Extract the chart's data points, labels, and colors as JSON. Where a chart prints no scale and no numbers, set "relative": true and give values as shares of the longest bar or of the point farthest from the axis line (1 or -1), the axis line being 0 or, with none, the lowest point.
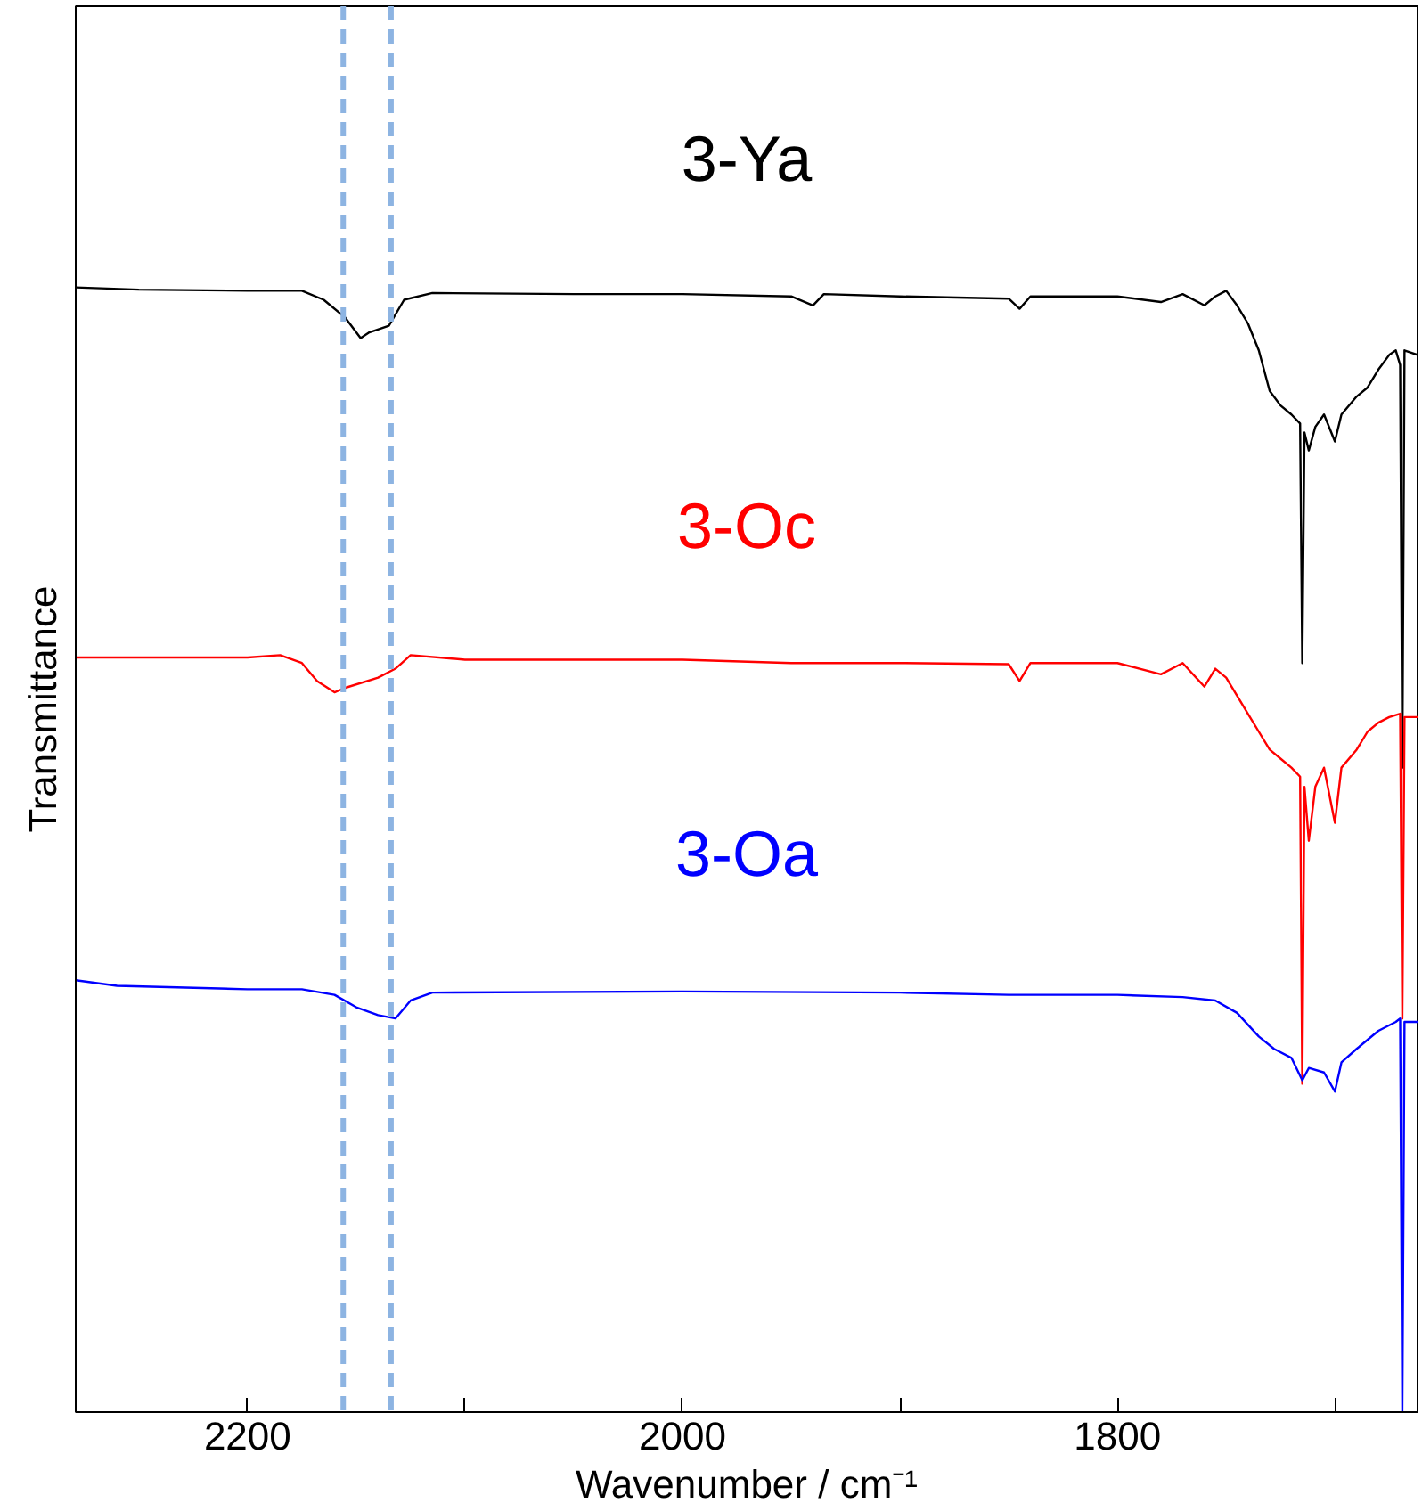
{
  "chart_data": {
    "type": "line",
    "relative": true,
    "xlabel": "Wavenumber / cm⁻¹",
    "ylabel": "Transmittance",
    "xlim": [
      2279,
      1662
    ],
    "xticks": [
      2200,
      {
        "value": 2100,
        "label": null
      },
      2000,
      {
        "value": 1900,
        "label": null
      },
      1800,
      {
        "value": 1700,
        "label": null
      }
    ],
    "grid": false,
    "marker": "none",
    "line_style": "solid",
    "ref_lines": [
      {
        "axis": "x",
        "value": 2156,
        "label": null,
        "color": "#8db4e2",
        "line_style": "dashed"
      },
      {
        "axis": "x",
        "value": 2134,
        "label": null,
        "color": "#8db4e2",
        "line_style": "dashed"
      }
    ],
    "series": [
      {
        "name": "3-Ya",
        "color": "#000000",
        "x": [
          2279,
          2250,
          2200,
          2175,
          2165,
          2155,
          2148,
          2144,
          2135,
          2128,
          2115,
          2050,
          2000,
          1950,
          1940,
          1935,
          1900,
          1850,
          1845,
          1840,
          1800,
          1780,
          1770,
          1760,
          1755,
          1750,
          1745,
          1740,
          1735,
          1730,
          1725,
          1720,
          1716,
          1715,
          1714,
          1712,
          1709,
          1705,
          1700,
          1697,
          1690,
          1685,
          1680,
          1675,
          1672,
          1670,
          1669,
          1668,
          1662
        ],
        "values": [
          1.0,
          0.998,
          0.997,
          0.997,
          0.989,
          0.973,
          0.955,
          0.96,
          0.966,
          0.989,
          0.995,
          0.994,
          0.994,
          0.992,
          0.984,
          0.994,
          0.992,
          0.99,
          0.981,
          0.992,
          0.992,
          0.987,
          0.994,
          0.984,
          0.992,
          0.997,
          0.984,
          0.968,
          0.944,
          0.908,
          0.895,
          0.887,
          0.879,
          0.666,
          0.871,
          0.855,
          0.876,
          0.887,
          0.863,
          0.887,
          0.903,
          0.911,
          0.927,
          0.94,
          0.944,
          0.931,
          0.573,
          0.944,
          0.94
        ]
      },
      {
        "name": "3-Oc",
        "color": "#ff0000",
        "x": [
          2279,
          2200,
          2185,
          2175,
          2168,
          2160,
          2155,
          2140,
          2132,
          2125,
          2100,
          2000,
          1950,
          1900,
          1850,
          1845,
          1840,
          1800,
          1780,
          1770,
          1760,
          1755,
          1750,
          1745,
          1740,
          1735,
          1730,
          1725,
          1720,
          1716,
          1715,
          1714,
          1712,
          1709,
          1705,
          1700,
          1697,
          1690,
          1685,
          1680,
          1675,
          1670,
          1669,
          1668,
          1662
        ],
        "values": [
          0.671,
          0.671,
          0.673,
          0.666,
          0.65,
          0.64,
          0.644,
          0.653,
          0.661,
          0.673,
          0.669,
          0.669,
          0.666,
          0.666,
          0.665,
          0.65,
          0.666,
          0.666,
          0.656,
          0.666,
          0.645,
          0.661,
          0.653,
          0.637,
          0.621,
          0.605,
          0.589,
          0.581,
          0.573,
          0.565,
          0.292,
          0.556,
          0.508,
          0.556,
          0.573,
          0.524,
          0.573,
          0.589,
          0.605,
          0.613,
          0.618,
          0.621,
          0.35,
          0.618,
          0.618
        ]
      },
      {
        "name": "3-Oa",
        "color": "#0000ff",
        "x": [
          2279,
          2260,
          2200,
          2175,
          2160,
          2150,
          2140,
          2132,
          2125,
          2115,
          2000,
          1900,
          1850,
          1800,
          1770,
          1755,
          1745,
          1735,
          1728,
          1720,
          1715,
          1712,
          1705,
          1700,
          1697,
          1690,
          1680,
          1672,
          1670,
          1669,
          1668,
          1662
        ],
        "values": [
          0.384,
          0.379,
          0.376,
          0.376,
          0.371,
          0.36,
          0.353,
          0.35,
          0.366,
          0.373,
          0.374,
          0.373,
          0.371,
          0.371,
          0.369,
          0.366,
          0.355,
          0.334,
          0.323,
          0.315,
          0.295,
          0.306,
          0.302,
          0.285,
          0.311,
          0.323,
          0.339,
          0.347,
          0.35,
          0.0,
          0.347,
          0.347
        ]
      }
    ]
  }
}
